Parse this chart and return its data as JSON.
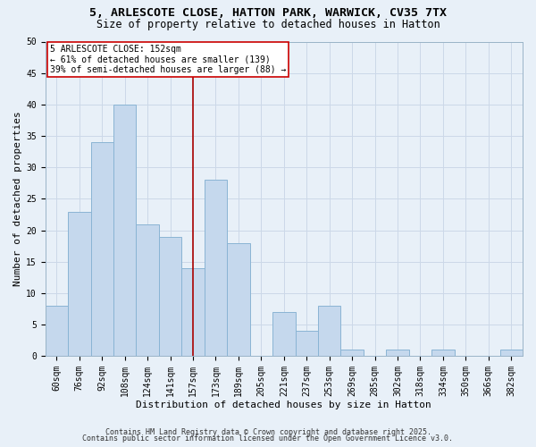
{
  "title": "5, ARLESCOTE CLOSE, HATTON PARK, WARWICK, CV35 7TX",
  "subtitle": "Size of property relative to detached houses in Hatton",
  "xlabel": "Distribution of detached houses by size in Hatton",
  "ylabel": "Number of detached properties",
  "footer_line1": "Contains HM Land Registry data © Crown copyright and database right 2025.",
  "footer_line2": "Contains public sector information licensed under the Open Government Licence v3.0.",
  "bar_labels": [
    "60sqm",
    "76sqm",
    "92sqm",
    "108sqm",
    "124sqm",
    "141sqm",
    "157sqm",
    "173sqm",
    "189sqm",
    "205sqm",
    "221sqm",
    "237sqm",
    "253sqm",
    "269sqm",
    "285sqm",
    "302sqm",
    "318sqm",
    "334sqm",
    "350sqm",
    "366sqm",
    "382sqm"
  ],
  "bar_values": [
    8,
    23,
    34,
    40,
    21,
    19,
    14,
    28,
    18,
    0,
    7,
    4,
    8,
    1,
    0,
    1,
    0,
    1,
    0,
    0,
    1
  ],
  "bar_color": "#c5d8ed",
  "bar_edge_color": "#8ab4d4",
  "vline_x_index": 6,
  "vline_color": "#aa0000",
  "annotation_title": "5 ARLESCOTE CLOSE: 152sqm",
  "annotation_line2": "← 61% of detached houses are smaller (139)",
  "annotation_line3": "39% of semi-detached houses are larger (88) →",
  "annotation_box_color": "#ffffff",
  "annotation_box_edge": "#cc0000",
  "ylim": [
    0,
    50
  ],
  "yticks": [
    0,
    5,
    10,
    15,
    20,
    25,
    30,
    35,
    40,
    45,
    50
  ],
  "grid_color": "#ccd8e8",
  "background_color": "#e8f0f8",
  "title_fontsize": 9.5,
  "subtitle_fontsize": 8.5,
  "axis_label_fontsize": 8,
  "tick_fontsize": 7,
  "annotation_fontsize": 7,
  "footer_fontsize": 6
}
